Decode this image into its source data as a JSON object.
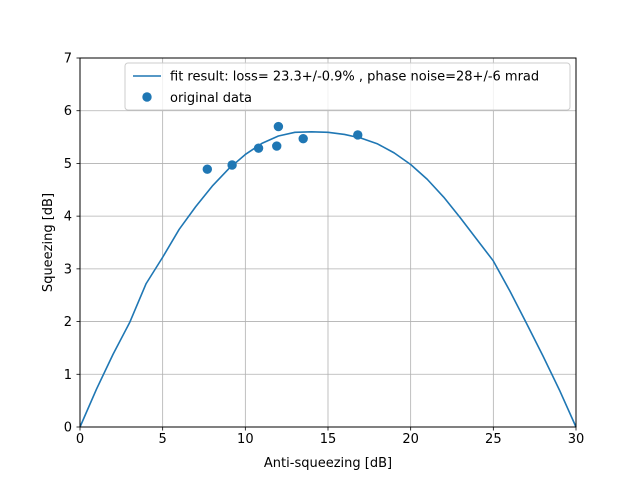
{
  "chart_data": {
    "type": "scatter",
    "xlabel": "Anti-squeezing [dB]",
    "ylabel": "Squeezing [dB]",
    "xlim": [
      0,
      30
    ],
    "ylim": [
      0,
      7
    ],
    "xticks": [
      0,
      5,
      10,
      15,
      20,
      25,
      30
    ],
    "yticks": [
      0,
      1,
      2,
      3,
      4,
      5,
      6,
      7
    ],
    "grid": true,
    "legend_position": "top-right",
    "series": [
      {
        "name": "fit result: loss= 23.3+/-0.9% , phase noise=28+/-6 mrad",
        "kind": "line",
        "color": "#1f77b4",
        "x": [
          0,
          1,
          2,
          3,
          4,
          5,
          6,
          7,
          8,
          9,
          10,
          11,
          12,
          13,
          14,
          15,
          16,
          17,
          18,
          19,
          20,
          21,
          22,
          23,
          24,
          25,
          26,
          27,
          28,
          29,
          30
        ],
        "y": [
          0.0,
          0.72,
          1.38,
          1.98,
          2.72,
          3.22,
          3.75,
          4.18,
          4.57,
          4.9,
          5.17,
          5.38,
          5.52,
          5.59,
          5.6,
          5.59,
          5.55,
          5.48,
          5.37,
          5.2,
          4.98,
          4.7,
          4.36,
          3.97,
          3.56,
          3.15,
          2.58,
          1.97,
          1.35,
          0.7,
          0.0
        ]
      },
      {
        "name": "original data",
        "kind": "scatter",
        "color": "#1f77b4",
        "x": [
          7.7,
          9.2,
          10.8,
          11.9,
          12.0,
          13.5,
          16.8
        ],
        "y": [
          4.89,
          4.97,
          5.29,
          5.33,
          5.7,
          5.47,
          5.54
        ]
      }
    ]
  }
}
